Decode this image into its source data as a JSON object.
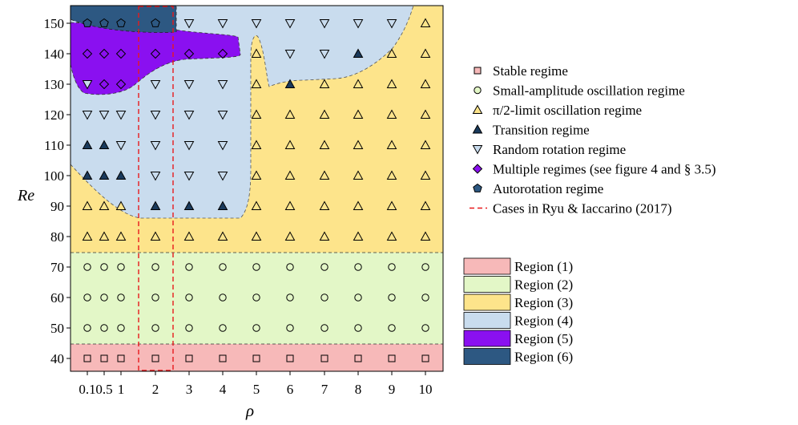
{
  "chart_data": {
    "type": "scatter",
    "xlabel": "ρ",
    "ylabel": "Re",
    "x_ticks": [
      {
        "value": 0.1,
        "label": "0.1"
      },
      {
        "value": 0.5,
        "label": "0.5"
      },
      {
        "value": 1,
        "label": "1"
      },
      {
        "value": 2,
        "label": "2"
      },
      {
        "value": 3,
        "label": "3"
      },
      {
        "value": 4,
        "label": "4"
      },
      {
        "value": 5,
        "label": "5"
      },
      {
        "value": 6,
        "label": "6"
      },
      {
        "value": 7,
        "label": "7"
      },
      {
        "value": 8,
        "label": "8"
      },
      {
        "value": 9,
        "label": "9"
      },
      {
        "value": 10,
        "label": "10"
      }
    ],
    "y_ticks": [
      40,
      50,
      60,
      70,
      80,
      90,
      100,
      110,
      120,
      130,
      140,
      150
    ],
    "legend_markers": [
      {
        "key": "stable",
        "label": "Stable regime",
        "marker": "square",
        "color": "#f7b9b9"
      },
      {
        "key": "small",
        "label": "Small-amplitude oscillation regime",
        "marker": "circle",
        "color": "#e3f7c7"
      },
      {
        "key": "pi2",
        "label": "π/2-limit oscillation regime",
        "marker": "triangle-up",
        "color": "#fde48b"
      },
      {
        "key": "transition",
        "label": "Transition regime",
        "marker": "triangle-up-filled",
        "color": "#1a3a5c"
      },
      {
        "key": "random",
        "label": "Random rotation regime",
        "marker": "triangle-down",
        "color": "#c9dcee"
      },
      {
        "key": "multiple",
        "label": "Multiple regimes (see figure 4 and § 3.5)",
        "marker": "diamond",
        "color": "#8a10f0"
      },
      {
        "key": "auto",
        "label": "Autorotation regime",
        "marker": "pentagon",
        "color": "#2d5882"
      },
      {
        "key": "ryu",
        "label": "Cases in Ryu & Iaccarino (2017)",
        "marker": "dashed-line",
        "color": "#e8191c"
      }
    ],
    "legend_regions": [
      {
        "label": "Region (1)",
        "color": "#f7b9b9"
      },
      {
        "label": "Region (2)",
        "color": "#e3f7c7"
      },
      {
        "label": "Region (3)",
        "color": "#fde48b"
      },
      {
        "label": "Region (4)",
        "color": "#c9dcee"
      },
      {
        "label": "Region (5)",
        "color": "#8a10f0"
      },
      {
        "label": "Region (6)",
        "color": "#2d5882"
      }
    ],
    "points": {
      "stable": [
        [
          0.1,
          40
        ],
        [
          0.5,
          40
        ],
        [
          1,
          40
        ],
        [
          2,
          40
        ],
        [
          3,
          40
        ],
        [
          4,
          40
        ],
        [
          5,
          40
        ],
        [
          6,
          40
        ],
        [
          7,
          40
        ],
        [
          8,
          40
        ],
        [
          9,
          40
        ],
        [
          10,
          40
        ]
      ],
      "small": [
        [
          0.1,
          50
        ],
        [
          0.5,
          50
        ],
        [
          1,
          50
        ],
        [
          2,
          50
        ],
        [
          3,
          50
        ],
        [
          4,
          50
        ],
        [
          5,
          50
        ],
        [
          6,
          50
        ],
        [
          7,
          50
        ],
        [
          8,
          50
        ],
        [
          9,
          50
        ],
        [
          10,
          50
        ],
        [
          0.1,
          60
        ],
        [
          0.5,
          60
        ],
        [
          1,
          60
        ],
        [
          2,
          60
        ],
        [
          3,
          60
        ],
        [
          4,
          60
        ],
        [
          5,
          60
        ],
        [
          6,
          60
        ],
        [
          7,
          60
        ],
        [
          8,
          60
        ],
        [
          9,
          60
        ],
        [
          10,
          60
        ],
        [
          0.1,
          70
        ],
        [
          0.5,
          70
        ],
        [
          1,
          70
        ],
        [
          2,
          70
        ],
        [
          3,
          70
        ],
        [
          4,
          70
        ],
        [
          5,
          70
        ],
        [
          6,
          70
        ],
        [
          7,
          70
        ],
        [
          8,
          70
        ],
        [
          9,
          70
        ],
        [
          10,
          70
        ]
      ],
      "pi2": [
        [
          0.1,
          80
        ],
        [
          0.5,
          80
        ],
        [
          1,
          80
        ],
        [
          2,
          80
        ],
        [
          3,
          80
        ],
        [
          4,
          80
        ],
        [
          5,
          80
        ],
        [
          6,
          80
        ],
        [
          7,
          80
        ],
        [
          8,
          80
        ],
        [
          9,
          80
        ],
        [
          10,
          80
        ],
        [
          0.1,
          90
        ],
        [
          0.5,
          90
        ],
        [
          1,
          90
        ],
        [
          5,
          90
        ],
        [
          6,
          90
        ],
        [
          7,
          90
        ],
        [
          8,
          90
        ],
        [
          9,
          90
        ],
        [
          10,
          90
        ],
        [
          5,
          100
        ],
        [
          6,
          100
        ],
        [
          7,
          100
        ],
        [
          8,
          100
        ],
        [
          9,
          100
        ],
        [
          10,
          100
        ],
        [
          5,
          110
        ],
        [
          6,
          110
        ],
        [
          7,
          110
        ],
        [
          8,
          110
        ],
        [
          9,
          110
        ],
        [
          10,
          110
        ],
        [
          5,
          120
        ],
        [
          6,
          120
        ],
        [
          7,
          120
        ],
        [
          8,
          120
        ],
        [
          9,
          120
        ],
        [
          10,
          120
        ],
        [
          5,
          130
        ],
        [
          7,
          130
        ],
        [
          8,
          130
        ],
        [
          9,
          130
        ],
        [
          10,
          130
        ],
        [
          5,
          140
        ],
        [
          9,
          140
        ],
        [
          10,
          140
        ],
        [
          10,
          150
        ]
      ],
      "transition": [
        [
          2,
          90
        ],
        [
          3,
          90
        ],
        [
          4,
          90
        ],
        [
          0.1,
          100
        ],
        [
          0.5,
          100
        ],
        [
          1,
          100
        ],
        [
          0.1,
          110
        ],
        [
          0.5,
          110
        ],
        [
          6,
          130
        ],
        [
          8,
          140
        ]
      ],
      "random": [
        [
          2,
          100
        ],
        [
          3,
          100
        ],
        [
          4,
          100
        ],
        [
          1,
          110
        ],
        [
          2,
          110
        ],
        [
          3,
          110
        ],
        [
          4,
          110
        ],
        [
          0.1,
          120
        ],
        [
          0.5,
          120
        ],
        [
          1,
          120
        ],
        [
          2,
          120
        ],
        [
          3,
          120
        ],
        [
          4,
          120
        ],
        [
          0.1,
          130
        ],
        [
          2,
          130
        ],
        [
          3,
          130
        ],
        [
          4,
          130
        ],
        [
          6,
          140
        ],
        [
          7,
          140
        ],
        [
          3,
          150
        ],
        [
          4,
          150
        ],
        [
          5,
          150
        ],
        [
          6,
          150
        ],
        [
          7,
          150
        ],
        [
          8,
          150
        ],
        [
          9,
          150
        ]
      ],
      "multiple": [
        [
          0.1,
          140
        ],
        [
          0.5,
          140
        ],
        [
          1,
          140
        ],
        [
          2,
          140
        ],
        [
          3,
          140
        ],
        [
          4,
          140
        ],
        [
          0.5,
          130
        ],
        [
          1,
          130
        ]
      ],
      "auto": [
        [
          0.1,
          150
        ],
        [
          0.5,
          150
        ],
        [
          1,
          150
        ],
        [
          2,
          150
        ]
      ]
    }
  }
}
